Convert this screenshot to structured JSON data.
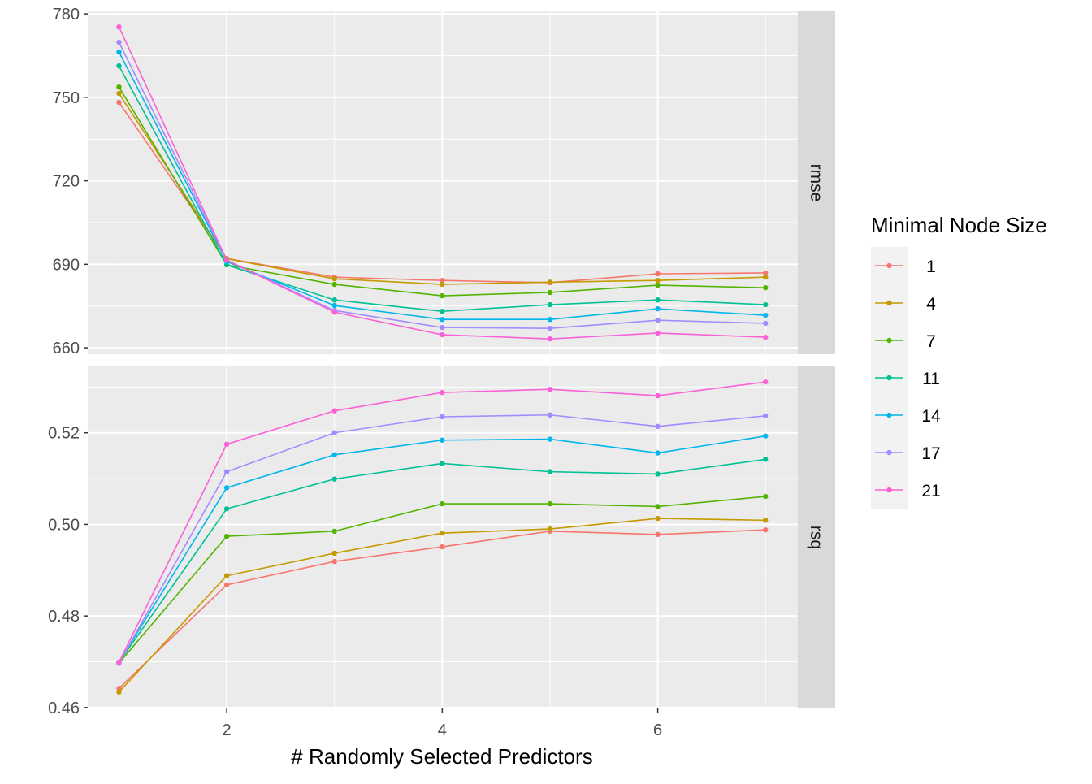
{
  "chart_data": {
    "type": "line",
    "xlabel": "# Randomly Selected Predictors",
    "x": [
      1,
      2,
      3,
      4,
      5,
      6,
      7
    ],
    "x_ticks": [
      "2",
      "4",
      "6"
    ],
    "legend": {
      "title": "Minimal Node Size",
      "placement": "right"
    },
    "grid": true,
    "colors": [
      "#F8766D",
      "#C49A00",
      "#53B400",
      "#00C094",
      "#00B6EB",
      "#A58AFF",
      "#FB61D7"
    ],
    "facets": [
      {
        "strip": "rmse",
        "ylim": [
          657.7,
          780.9
        ],
        "y_ticks": [
          "660",
          "690",
          "720",
          "750",
          "780"
        ],
        "series": [
          {
            "name": "1",
            "values": [
              748.2,
              692.1,
              685.4,
              684.2,
              683.4,
              686.6,
              686.9
            ]
          },
          {
            "name": "4",
            "values": [
              751.4,
              692.0,
              684.8,
              682.8,
              683.6,
              684.2,
              685.4
            ]
          },
          {
            "name": "7",
            "values": [
              753.7,
              689.8,
              682.8,
              678.7,
              679.9,
              682.5,
              681.6
            ]
          },
          {
            "name": "11",
            "values": [
              761.3,
              689.8,
              677.2,
              673.1,
              675.5,
              677.2,
              675.5
            ]
          },
          {
            "name": "14",
            "values": [
              766.3,
              691.0,
              675.2,
              670.2,
              670.2,
              674.0,
              671.7
            ]
          },
          {
            "name": "17",
            "values": [
              769.8,
              691.5,
              673.4,
              667.3,
              667.0,
              669.9,
              668.8
            ]
          },
          {
            "name": "21",
            "values": [
              775.3,
              691.5,
              672.8,
              664.7,
              663.2,
              665.3,
              663.8
            ]
          }
        ]
      },
      {
        "strip": "rsq",
        "ylim": [
          0.4598,
          0.5345
        ],
        "y_ticks": [
          "0.46",
          "0.48",
          "0.50",
          "0.52"
        ],
        "series": [
          {
            "name": "1",
            "values": [
              0.4642,
              0.4868,
              0.4919,
              0.4951,
              0.4985,
              0.4978,
              0.4988
            ]
          },
          {
            "name": "4",
            "values": [
              0.4634,
              0.4888,
              0.4937,
              0.4981,
              0.499,
              0.5013,
              0.5009
            ]
          },
          {
            "name": "7",
            "values": [
              0.4697,
              0.4974,
              0.4985,
              0.5045,
              0.5045,
              0.5039,
              0.5061
            ]
          },
          {
            "name": "11",
            "values": [
              0.4699,
              0.5034,
              0.5099,
              0.5133,
              0.5115,
              0.511,
              0.5142
            ]
          },
          {
            "name": "14",
            "values": [
              0.4699,
              0.508,
              0.5152,
              0.5184,
              0.5186,
              0.5156,
              0.5193
            ]
          },
          {
            "name": "17",
            "values": [
              0.4697,
              0.5115,
              0.52,
              0.5235,
              0.5239,
              0.5214,
              0.5237
            ]
          },
          {
            "name": "21",
            "values": [
              0.4699,
              0.5175,
              0.5248,
              0.5288,
              0.5295,
              0.5281,
              0.5311
            ]
          }
        ]
      }
    ]
  }
}
